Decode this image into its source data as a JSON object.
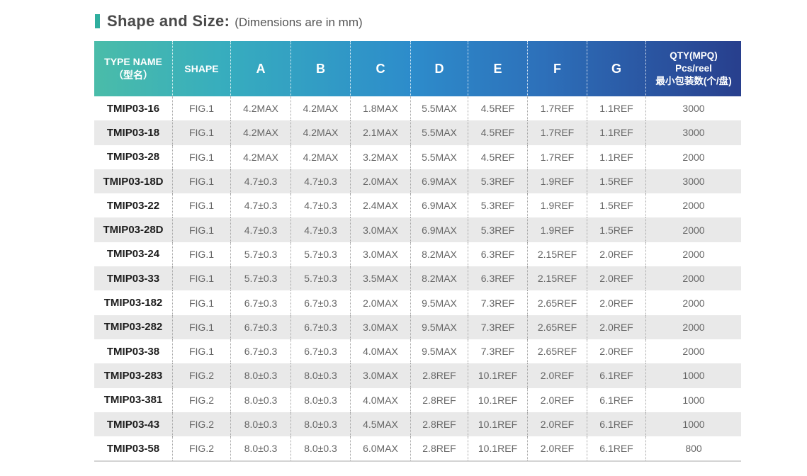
{
  "title": {
    "main": "Shape and Size:",
    "subtitle": "(Dimensions are in mm)",
    "accent_color": "#2fae9e"
  },
  "table": {
    "header_gradient": [
      "#4abca9",
      "#2d8ccb",
      "#283f8d"
    ],
    "row_alt_color": "#e9e9e9",
    "columns": [
      {
        "key": "type",
        "label_lines": [
          "TYPE NAME",
          "（型名）"
        ]
      },
      {
        "key": "shape",
        "label_lines": [
          "SHAPE"
        ]
      },
      {
        "key": "a",
        "label_lines": [
          "A"
        ]
      },
      {
        "key": "b",
        "label_lines": [
          "B"
        ]
      },
      {
        "key": "c",
        "label_lines": [
          "C"
        ]
      },
      {
        "key": "d",
        "label_lines": [
          "D"
        ]
      },
      {
        "key": "e",
        "label_lines": [
          "E"
        ]
      },
      {
        "key": "f",
        "label_lines": [
          "F"
        ]
      },
      {
        "key": "g",
        "label_lines": [
          "G"
        ]
      },
      {
        "key": "qty",
        "label_lines": [
          "QTY(MPQ)",
          "Pcs/reel",
          "最小包装数(个/盘)"
        ]
      }
    ],
    "rows": [
      [
        "TMIP03-16",
        "FIG.1",
        "4.2MAX",
        "4.2MAX",
        "1.8MAX",
        "5.5MAX",
        "4.5REF",
        "1.7REF",
        "1.1REF",
        "3000"
      ],
      [
        "TMIP03-18",
        "FIG.1",
        "4.2MAX",
        "4.2MAX",
        "2.1MAX",
        "5.5MAX",
        "4.5REF",
        "1.7REF",
        "1.1REF",
        "3000"
      ],
      [
        "TMIP03-28",
        "FIG.1",
        "4.2MAX",
        "4.2MAX",
        "3.2MAX",
        "5.5MAX",
        "4.5REF",
        "1.7REF",
        "1.1REF",
        "2000"
      ],
      [
        "TMIP03-18D",
        "FIG.1",
        "4.7±0.3",
        "4.7±0.3",
        "2.0MAX",
        "6.9MAX",
        "5.3REF",
        "1.9REF",
        "1.5REF",
        "3000"
      ],
      [
        "TMIP03-22",
        "FIG.1",
        "4.7±0.3",
        "4.7±0.3",
        "2.4MAX",
        "6.9MAX",
        "5.3REF",
        "1.9REF",
        "1.5REF",
        "2000"
      ],
      [
        "TMIP03-28D",
        "FIG.1",
        "4.7±0.3",
        "4.7±0.3",
        "3.0MAX",
        "6.9MAX",
        "5.3REF",
        "1.9REF",
        "1.5REF",
        "2000"
      ],
      [
        "TMIP03-24",
        "FIG.1",
        "5.7±0.3",
        "5.7±0.3",
        "3.0MAX",
        "8.2MAX",
        "6.3REF",
        "2.15REF",
        "2.0REF",
        "2000"
      ],
      [
        "TMIP03-33",
        "FIG.1",
        "5.7±0.3",
        "5.7±0.3",
        "3.5MAX",
        "8.2MAX",
        "6.3REF",
        "2.15REF",
        "2.0REF",
        "2000"
      ],
      [
        "TMIP03-182",
        "FIG.1",
        "6.7±0.3",
        "6.7±0.3",
        "2.0MAX",
        "9.5MAX",
        "7.3REF",
        "2.65REF",
        "2.0REF",
        "2000"
      ],
      [
        "TMIP03-282",
        "FIG.1",
        "6.7±0.3",
        "6.7±0.3",
        "3.0MAX",
        "9.5MAX",
        "7.3REF",
        "2.65REF",
        "2.0REF",
        "2000"
      ],
      [
        "TMIP03-38",
        "FIG.1",
        "6.7±0.3",
        "6.7±0.3",
        "4.0MAX",
        "9.5MAX",
        "7.3REF",
        "2.65REF",
        "2.0REF",
        "2000"
      ],
      [
        "TMIP03-283",
        "FIG.2",
        "8.0±0.3",
        "8.0±0.3",
        "3.0MAX",
        "2.8REF",
        "10.1REF",
        "2.0REF",
        "6.1REF",
        "1000"
      ],
      [
        "TMIP03-381",
        "FIG.2",
        "8.0±0.3",
        "8.0±0.3",
        "4.0MAX",
        "2.8REF",
        "10.1REF",
        "2.0REF",
        "6.1REF",
        "1000"
      ],
      [
        "TMIP03-43",
        "FIG.2",
        "8.0±0.3",
        "8.0±0.3",
        "4.5MAX",
        "2.8REF",
        "10.1REF",
        "2.0REF",
        "6.1REF",
        "1000"
      ],
      [
        "TMIP03-58",
        "FIG.2",
        "8.0±0.3",
        "8.0±0.3",
        "6.0MAX",
        "2.8REF",
        "10.1REF",
        "2.0REF",
        "6.1REF",
        "800"
      ]
    ]
  }
}
